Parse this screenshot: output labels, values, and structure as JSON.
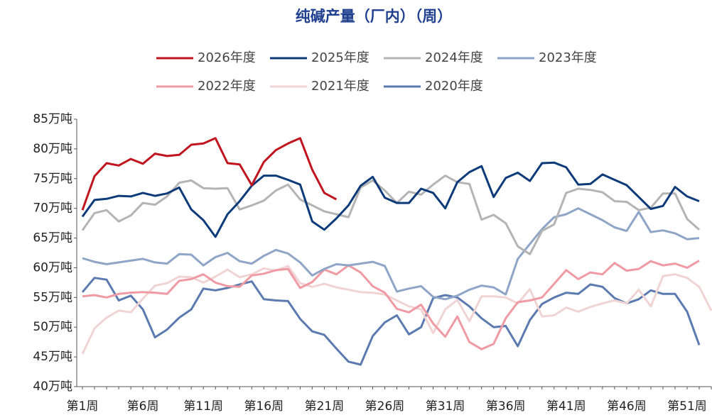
{
  "chart_data": {
    "type": "line",
    "title": "纯碱产量（厂内）（周）",
    "categories": [
      "第1周",
      null,
      null,
      null,
      null,
      "第6周",
      null,
      null,
      null,
      null,
      "第11周",
      null,
      null,
      null,
      null,
      "第16周",
      null,
      null,
      null,
      null,
      "第21周",
      null,
      null,
      null,
      null,
      "第26周",
      null,
      null,
      null,
      null,
      "第31周",
      null,
      null,
      null,
      null,
      "第36周",
      null,
      null,
      null,
      null,
      "第41周",
      null,
      null,
      null,
      null,
      "第46周",
      null,
      null,
      null,
      null,
      "第51周",
      null,
      null
    ],
    "ylim": [
      40,
      85
    ],
    "yticks": [
      {
        "value": 40,
        "label": "40万吨"
      },
      {
        "value": 45,
        "label": "45万吨"
      },
      {
        "value": 50,
        "label": "50万吨"
      },
      {
        "value": 55,
        "label": "55万吨"
      },
      {
        "value": 60,
        "label": "60万吨"
      },
      {
        "value": 65,
        "label": "65万吨"
      },
      {
        "value": 70,
        "label": "70万吨"
      },
      {
        "value": 75,
        "label": "75万吨"
      },
      {
        "value": 80,
        "label": "80万吨"
      },
      {
        "value": 85,
        "label": "85万吨"
      }
    ],
    "series": [
      {
        "name": "2026年度",
        "color": "#c0141e",
        "values": [
          69.7,
          75.4,
          77.6,
          77.2,
          78.3,
          77.5,
          79.2,
          78.8,
          79.0,
          80.7,
          80.9,
          81.8,
          77.6,
          77.4,
          73.9,
          77.8,
          79.8,
          80.9,
          81.8,
          76.5,
          72.6,
          71.5,
          null,
          null,
          null,
          null,
          null,
          null,
          null,
          null,
          null,
          null,
          null,
          null,
          null,
          null,
          null,
          null,
          null,
          null,
          null,
          null,
          null,
          null,
          null,
          null,
          null,
          null,
          null,
          null,
          null,
          null,
          null
        ]
      },
      {
        "name": "2025年度",
        "color": "#0d3b7a",
        "values": [
          68.6,
          71.4,
          71.6,
          72.1,
          72.0,
          72.6,
          72.1,
          72.5,
          73.5,
          69.8,
          68.0,
          65.2,
          69.0,
          71.2,
          73.8,
          75.5,
          75.5,
          74.8,
          74.0,
          67.8,
          66.4,
          68.3,
          70.5,
          73.8,
          75.3,
          71.8,
          70.9,
          70.9,
          73.3,
          72.6,
          70.0,
          74.4,
          76.1,
          77.1,
          71.9,
          75.1,
          76.0,
          74.6,
          77.6,
          77.7,
          76.9,
          74.0,
          74.1,
          75.7,
          74.8,
          73.9,
          71.9,
          69.9,
          70.4,
          73.6,
          72.0,
          71.2,
          null
        ]
      },
      {
        "name": "2024年度",
        "color": "#b4b4b4",
        "values": [
          66.3,
          69.2,
          69.7,
          67.8,
          68.8,
          70.9,
          70.6,
          72.0,
          74.3,
          74.7,
          73.4,
          73.3,
          73.4,
          69.8,
          70.5,
          71.3,
          73.0,
          74.0,
          71.5,
          70.5,
          69.5,
          69.0,
          68.5,
          73.5,
          74.7,
          73.0,
          70.9,
          72.8,
          72.3,
          74.0,
          75.5,
          74.4,
          74.1,
          68.1,
          68.9,
          67.5,
          63.6,
          62.3,
          66.2,
          67.3,
          72.6,
          73.3,
          73.1,
          72.7,
          71.2,
          71.1,
          69.7,
          70.1,
          72.5,
          72.5,
          68.2,
          66.4,
          null
        ]
      },
      {
        "name": "2023年度",
        "color": "#8ea5c8",
        "values": [
          61.6,
          61.0,
          60.6,
          60.9,
          61.2,
          61.5,
          60.9,
          60.7,
          62.3,
          62.2,
          60.4,
          61.8,
          62.5,
          61.1,
          60.7,
          62.0,
          63.0,
          62.4,
          60.9,
          58.7,
          59.8,
          60.6,
          60.4,
          60.7,
          61.0,
          60.3,
          56.0,
          56.5,
          56.9,
          55.1,
          54.7,
          55.3,
          56.3,
          57.0,
          56.7,
          55.5,
          61.5,
          64.0,
          66.5,
          68.5,
          69.0,
          70.0,
          69.0,
          68.0,
          66.8,
          66.2,
          69.4,
          66.0,
          66.3,
          65.8,
          64.8,
          65.0,
          null
        ]
      },
      {
        "name": "2022年度",
        "color": "#f09aa4",
        "values": [
          55.2,
          55.4,
          55.0,
          55.6,
          55.8,
          55.9,
          55.8,
          55.6,
          57.8,
          58.1,
          58.9,
          57.5,
          56.9,
          56.8,
          58.7,
          59.0,
          59.6,
          59.8,
          56.6,
          57.6,
          59.7,
          58.9,
          60.4,
          59.2,
          56.9,
          55.8,
          53.1,
          52.5,
          53.8,
          50.6,
          48.4,
          51.8,
          47.5,
          46.3,
          47.2,
          51.5,
          54.2,
          54.5,
          55.0,
          57.3,
          59.6,
          58.1,
          59.2,
          58.9,
          60.8,
          59.5,
          59.8,
          61.1,
          60.4,
          60.7,
          60.0,
          61.2,
          null
        ]
      },
      {
        "name": "2021年度",
        "color": "#f0d4d4",
        "values": [
          45.5,
          49.8,
          51.6,
          52.8,
          52.5,
          54.8,
          57.0,
          57.4,
          58.5,
          58.4,
          57.5,
          58.5,
          59.7,
          58.4,
          58.9,
          59.9,
          59.5,
          60.3,
          57.4,
          56.8,
          57.3,
          56.7,
          56.3,
          55.9,
          55.8,
          55.5,
          54.5,
          53.5,
          53.0,
          49.0,
          53.0,
          54.6,
          51.0,
          55.2,
          55.2,
          55.0,
          54.0,
          56.4,
          51.8,
          52.0,
          53.3,
          52.6,
          53.4,
          54.0,
          54.5,
          54.0,
          56.3,
          53.5,
          58.6,
          58.9,
          58.3,
          56.8,
          52.8
        ]
      },
      {
        "name": "2020年度",
        "color": "#5a7ab0",
        "values": [
          55.9,
          58.3,
          58.0,
          54.5,
          55.3,
          53.0,
          48.3,
          49.6,
          51.6,
          53.0,
          56.5,
          56.2,
          56.6,
          57.2,
          57.7,
          54.7,
          54.5,
          54.4,
          51.4,
          49.3,
          48.7,
          46.4,
          44.2,
          43.7,
          48.5,
          50.8,
          52.0,
          48.8,
          50.0,
          54.9,
          55.4,
          55.0,
          53.5,
          51.5,
          50.0,
          50.2,
          46.8,
          51.2,
          53.9,
          55.0,
          55.8,
          55.6,
          57.2,
          56.8,
          54.9,
          54.0,
          54.7,
          56.2,
          55.6,
          55.6,
          52.6,
          47.0,
          null
        ]
      }
    ]
  }
}
